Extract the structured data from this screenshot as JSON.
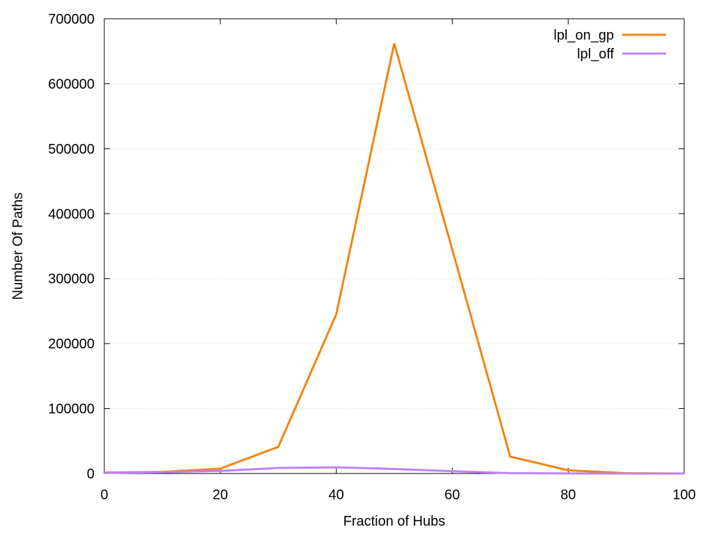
{
  "chart_data": {
    "type": "line",
    "xlabel": "Fraction of Hubs",
    "ylabel": "Number Of Paths",
    "xlim": [
      0,
      100
    ],
    "ylim": [
      0,
      700000
    ],
    "x_ticks": [
      0,
      20,
      40,
      60,
      80,
      100
    ],
    "y_ticks": [
      0,
      100000,
      200000,
      300000,
      400000,
      500000,
      600000,
      700000
    ],
    "grid": "horizontal-dotted",
    "legend_position": "top-right",
    "series": [
      {
        "name": "lpl_on_gp",
        "color": "#f28310",
        "x": [
          0,
          10,
          20,
          30,
          40,
          50,
          60,
          70,
          80,
          90,
          100
        ],
        "values": [
          1500,
          2500,
          7500,
          41000,
          245000,
          662000,
          345000,
          26000,
          5000,
          500,
          0
        ]
      },
      {
        "name": "lpl_off",
        "color": "#c080ff",
        "x": [
          0,
          10,
          20,
          30,
          40,
          50,
          60,
          70,
          80,
          90,
          100
        ],
        "values": [
          1000,
          2000,
          4000,
          8500,
          9500,
          7000,
          3500,
          500,
          100,
          0,
          0
        ]
      }
    ]
  }
}
